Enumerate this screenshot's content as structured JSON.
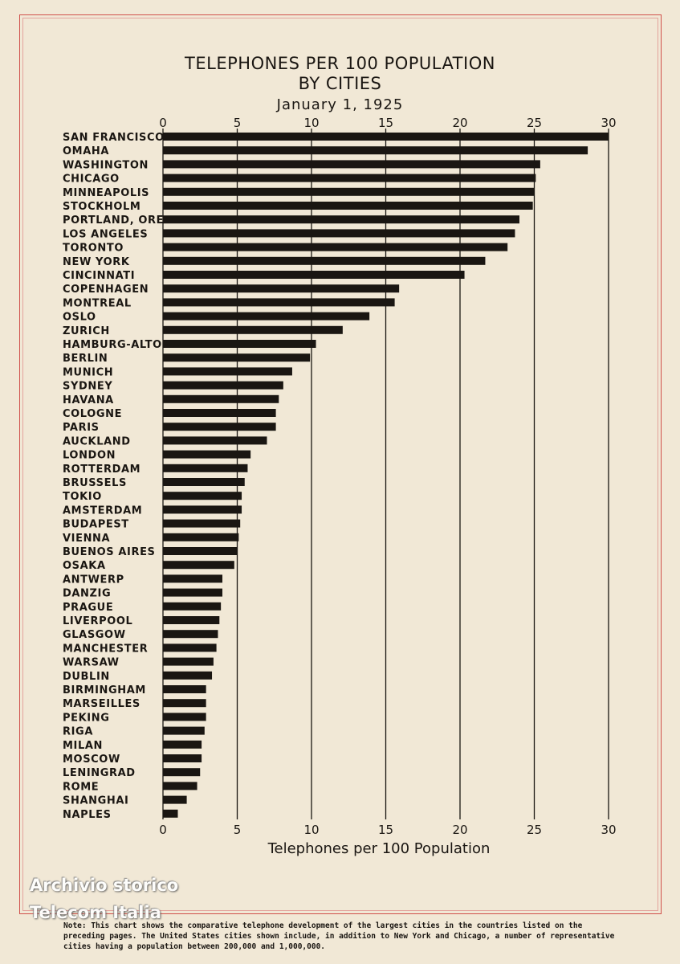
{
  "page": {
    "title_line1": "TELEPHONES PER 100 POPULATION",
    "title_line2": "BY CITIES",
    "date": "January 1, 1925",
    "watermark_line1": "Archivio storico",
    "watermark_line2": "Telecom Italia",
    "note": "Note: This chart shows the comparative telephone development of the largest cities in the countries listed on the preceding pages. The United States cities shown include, in addition to New York and Chicago, a number of representative cities having a population between 200,000 and 1,000,000."
  },
  "colors": {
    "background": "#f1e8d6",
    "bar": "#1a1612",
    "frame": "#d0504a"
  },
  "chart_data": {
    "type": "bar",
    "orientation": "horizontal",
    "title": "TELEPHONES PER 100 POPULATION BY CITIES",
    "subtitle": "January 1, 1925",
    "xlabel": "Telephones per 100 Population",
    "ylabel": "",
    "xlim": [
      0,
      30
    ],
    "xticks": [
      0,
      5,
      10,
      15,
      20,
      25,
      30
    ],
    "grid": true,
    "categories": [
      "SAN FRANCISCO",
      "OMAHA",
      "WASHINGTON",
      "CHICAGO",
      "MINNEAPOLIS",
      "STOCKHOLM",
      "PORTLAND, ORE.",
      "LOS ANGELES",
      "TORONTO",
      "NEW YORK",
      "CINCINNATI",
      "COPENHAGEN",
      "MONTREAL",
      "OSLO",
      "ZURICH",
      "HAMBURG-ALTONA",
      "BERLIN",
      "MUNICH",
      "SYDNEY",
      "HAVANA",
      "COLOGNE",
      "PARIS",
      "AUCKLAND",
      "LONDON",
      "ROTTERDAM",
      "BRUSSELS",
      "TOKIO",
      "AMSTERDAM",
      "BUDAPEST",
      "VIENNA",
      "BUENOS AIRES",
      "OSAKA",
      "ANTWERP",
      "DANZIG",
      "PRAGUE",
      "LIVERPOOL",
      "GLASGOW",
      "MANCHESTER",
      "WARSAW",
      "DUBLIN",
      "BIRMINGHAM",
      "MARSEILLES",
      "PEKING",
      "RIGA",
      "MILAN",
      "MOSCOW",
      "LENINGRAD",
      "ROME",
      "SHANGHAI",
      "NAPLES"
    ],
    "values": [
      30.0,
      28.6,
      25.4,
      25.1,
      25.0,
      24.9,
      24.0,
      23.7,
      23.2,
      21.7,
      20.3,
      15.9,
      15.6,
      13.9,
      12.1,
      10.3,
      9.9,
      8.7,
      8.1,
      7.8,
      7.6,
      7.6,
      7.0,
      5.9,
      5.7,
      5.5,
      5.3,
      5.3,
      5.2,
      5.1,
      5.0,
      4.8,
      4.0,
      4.0,
      3.9,
      3.8,
      3.7,
      3.6,
      3.4,
      3.3,
      2.9,
      2.9,
      2.9,
      2.8,
      2.6,
      2.6,
      2.5,
      2.3,
      1.6,
      1.0
    ]
  }
}
